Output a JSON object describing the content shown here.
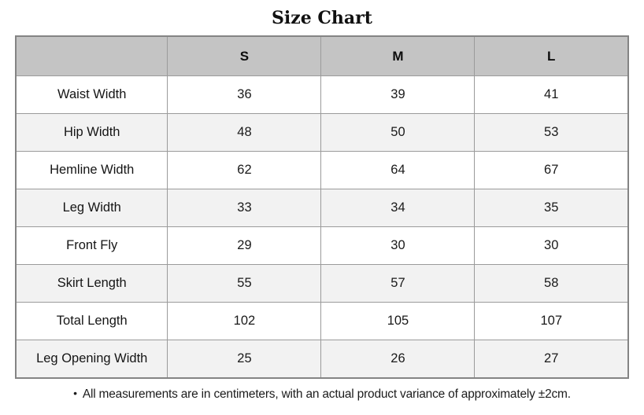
{
  "title": "Size Chart",
  "table": {
    "columns": [
      "",
      "S",
      "M",
      "L"
    ],
    "rows": [
      {
        "label": "Waist Width",
        "values": [
          "36",
          "39",
          "41"
        ]
      },
      {
        "label": "Hip Width",
        "values": [
          "48",
          "50",
          "53"
        ]
      },
      {
        "label": "Hemline Width",
        "values": [
          "62",
          "64",
          "67"
        ]
      },
      {
        "label": "Leg Width",
        "values": [
          "33",
          "34",
          "35"
        ]
      },
      {
        "label": "Front Fly",
        "values": [
          "29",
          "30",
          "30"
        ]
      },
      {
        "label": "Skirt Length",
        "values": [
          "55",
          "57",
          "58"
        ]
      },
      {
        "label": "Total Length",
        "values": [
          "102",
          "105",
          "107"
        ]
      },
      {
        "label": "Leg Opening Width",
        "values": [
          "25",
          "26",
          "27"
        ]
      }
    ]
  },
  "footnote": {
    "bullet": "•",
    "text": "All measurements are in centimeters, with an actual product variance of approximately ±2cm."
  },
  "colors": {
    "header_bg": "#c4c4c4",
    "stripe_bg": "#f2f2f2",
    "border_inner": "#9b9b9b",
    "border_outer": "#848484"
  }
}
